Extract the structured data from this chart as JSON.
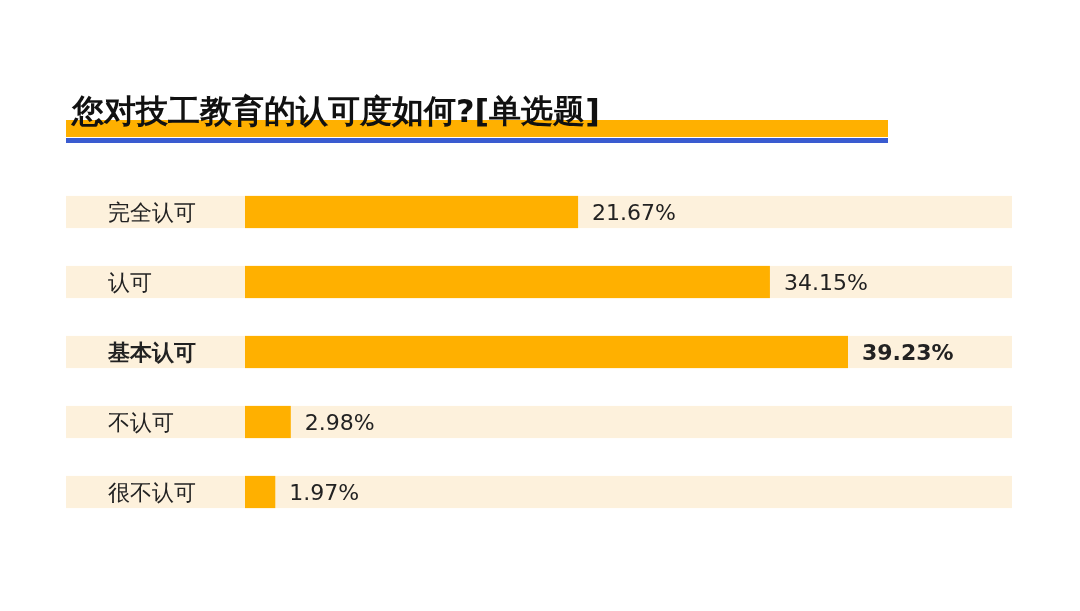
{
  "chart_data": {
    "type": "bar",
    "orientation": "horizontal",
    "title": "您对技工教育的认可度如何?[单选题]",
    "categories": [
      "完全认可",
      "认可",
      "基本认可",
      "不认可",
      "很不认可"
    ],
    "values": [
      21.67,
      34.15,
      39.23,
      2.98,
      1.97
    ],
    "value_labels": [
      "21.67%",
      "34.15%",
      "39.23%",
      "2.98%",
      "1.97%"
    ],
    "color": "#ffb000"
  }
}
